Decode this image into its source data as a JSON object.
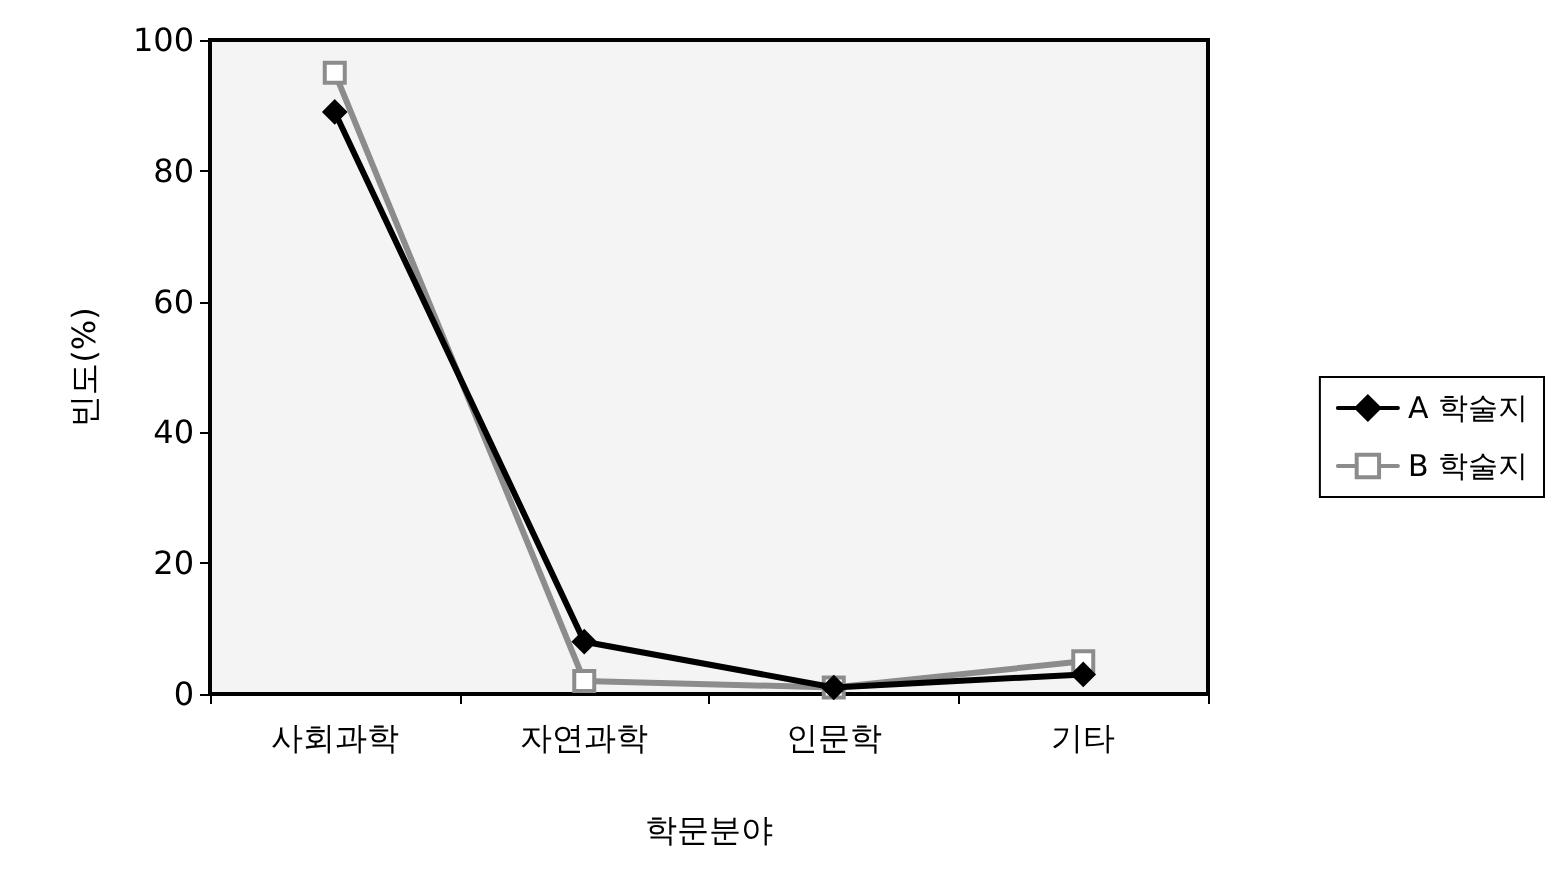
{
  "chart_data": {
    "type": "line",
    "xlabel": "학문분야",
    "ylabel": "빈도(%)",
    "categories": [
      "사회과학",
      "자연과학",
      "인문학",
      "기타"
    ],
    "series": [
      {
        "name": "A 학술지",
        "color": "#000000",
        "marker": "diamond",
        "values": [
          89,
          8,
          1,
          3
        ]
      },
      {
        "name": "B 학술지",
        "color": "#8c8c8c",
        "marker": "square",
        "values": [
          95,
          2,
          1,
          5
        ]
      }
    ],
    "ylim": [
      0,
      100
    ],
    "yticks": [
      0,
      20,
      40,
      60,
      80,
      100
    ],
    "grid": false,
    "legend": "right",
    "line_style": "solid"
  }
}
